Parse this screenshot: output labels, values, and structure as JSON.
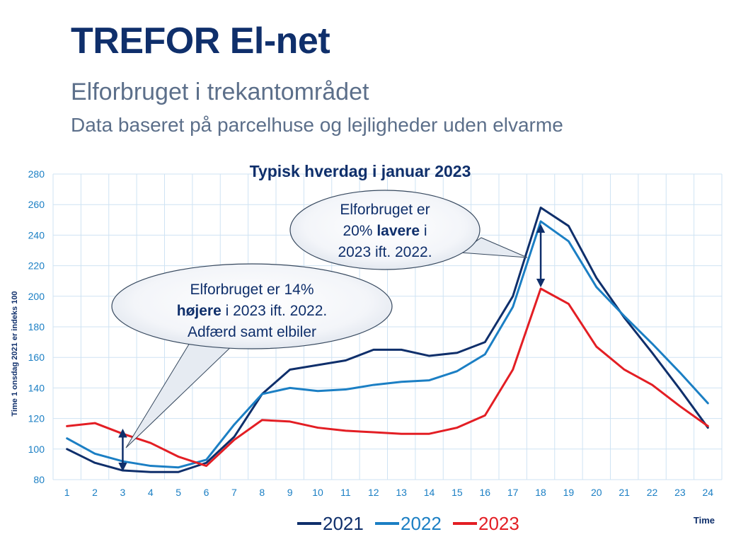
{
  "page": {
    "title": "TREFOR El-net",
    "subtitle": "Elforbruget i trekantområdet",
    "subtitle2": "Data baseret på parcelhuse og lejligheder uden elvarme"
  },
  "chart_data": {
    "type": "line",
    "title": "Typisk hverdag i januar 2023",
    "xlabel": "Time",
    "ylabel": "Time 1 onsdag 2021 er indeks 100",
    "x": [
      1,
      2,
      3,
      4,
      5,
      6,
      7,
      8,
      9,
      10,
      11,
      12,
      13,
      14,
      15,
      16,
      17,
      18,
      19,
      20,
      21,
      22,
      23,
      24
    ],
    "ylim": [
      80,
      280
    ],
    "yticks": [
      80,
      100,
      120,
      140,
      160,
      180,
      200,
      220,
      240,
      260,
      280
    ],
    "grid": true,
    "legend_position": "bottom",
    "series": [
      {
        "name": "2021",
        "color": "#0f2f6b",
        "values": [
          100,
          91,
          86,
          85,
          85,
          91,
          108,
          136,
          152,
          155,
          158,
          165,
          165,
          161,
          163,
          170,
          200,
          258,
          246,
          212,
          186,
          163,
          139,
          114
        ]
      },
      {
        "name": "2022",
        "color": "#1b7fc4",
        "values": [
          107,
          97,
          92,
          89,
          88,
          93,
          116,
          136,
          140,
          138,
          139,
          142,
          144,
          145,
          151,
          162,
          193,
          249,
          236,
          206,
          187,
          169,
          150,
          130
        ]
      },
      {
        "name": "2023",
        "color": "#e31e24",
        "values": [
          115,
          117,
          110,
          104,
          95,
          89,
          106,
          119,
          118,
          114,
          112,
          111,
          110,
          110,
          114,
          122,
          152,
          205,
          195,
          167,
          152,
          142,
          128,
          115
        ]
      }
    ],
    "annotations": [
      {
        "id": "callout-right",
        "lines": [
          [
            "Elforbruget er"
          ],
          [
            "20% ",
            "lavere",
            " i"
          ],
          [
            "2023 ift. 2022."
          ]
        ],
        "bold_index": 1,
        "x": 18
      },
      {
        "id": "callout-left",
        "lines": [
          [
            "Elforbruget er 14%"
          ],
          [
            "højere",
            " i 2023 ift. 2022."
          ],
          [
            "Adfærd samt elbiler"
          ]
        ],
        "bold_index": 1,
        "x": 3
      }
    ]
  }
}
